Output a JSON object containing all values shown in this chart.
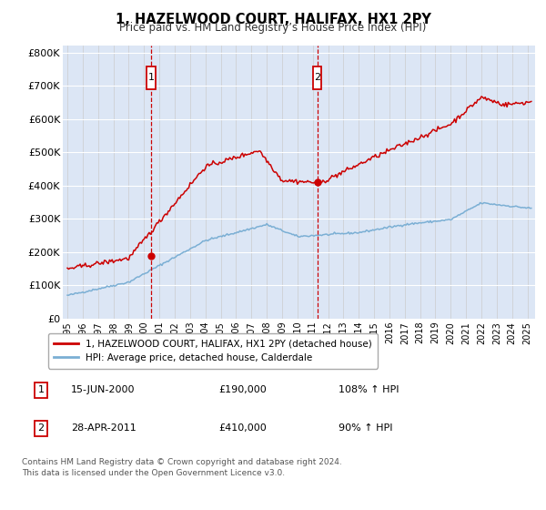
{
  "title": "1, HAZELWOOD COURT, HALIFAX, HX1 2PY",
  "subtitle": "Price paid vs. HM Land Registry’s House Price Index (HPI)",
  "background_color": "#dce6f5",
  "ylim": [
    0,
    820000
  ],
  "yticks": [
    0,
    100000,
    200000,
    300000,
    400000,
    500000,
    600000,
    700000,
    800000
  ],
  "ytick_labels": [
    "£0",
    "£100K",
    "£200K",
    "£300K",
    "£400K",
    "£500K",
    "£600K",
    "£700K",
    "£800K"
  ],
  "hpi_color": "#7bafd4",
  "price_color": "#cc0000",
  "vline_color": "#cc0000",
  "sale1_x": 2000.46,
  "sale1_price": 190000,
  "sale1_date": "15-JUN-2000",
  "sale1_hpi_pct": "108% ↑ HPI",
  "sale2_x": 2011.29,
  "sale2_price": 410000,
  "sale2_date": "28-APR-2011",
  "sale2_hpi_pct": "90% ↑ HPI",
  "legend_label1": "1, HAZELWOOD COURT, HALIFAX, HX1 2PY (detached house)",
  "legend_label2": "HPI: Average price, detached house, Calderdale",
  "footnote1": "Contains HM Land Registry data © Crown copyright and database right 2024.",
  "footnote2": "This data is licensed under the Open Government Licence v3.0."
}
